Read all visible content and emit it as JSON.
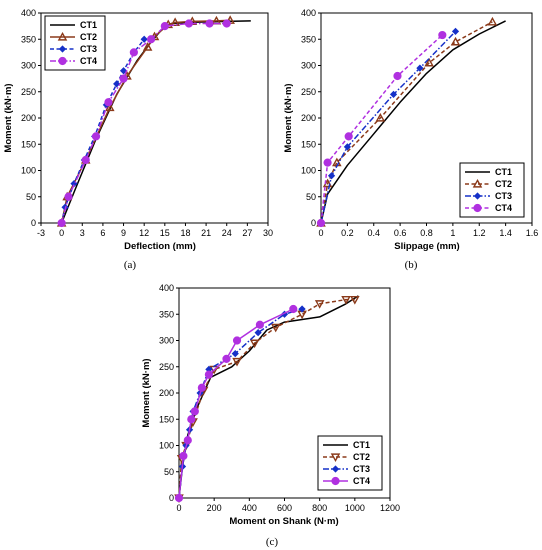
{
  "colors": {
    "CT1": "#000000",
    "CT2": "#8B3A1A",
    "CT3": "#1530C8",
    "CT4": "#B030E0"
  },
  "chart_data": [
    {
      "type": "line",
      "panel": "a",
      "caption": "(a)",
      "xlabel": "Deflection (mm)",
      "ylabel": "Moment (kN·m)",
      "xlim": [
        -3,
        30
      ],
      "ylim": [
        0,
        400
      ],
      "xticks": [
        "-3",
        "0",
        "3",
        "6",
        "9",
        "12",
        "15",
        "18",
        "21",
        "24",
        "27",
        "30"
      ],
      "yticks": [
        "0",
        "50",
        "100",
        "150",
        "200",
        "250",
        "300",
        "350",
        "400"
      ],
      "legend_position": "top-left",
      "series": [
        {
          "name": "CT1",
          "marker": "none",
          "dash": "solid",
          "x": [
            0,
            2,
            5,
            8,
            11,
            13,
            15,
            16,
            18,
            21,
            24,
            27.5
          ],
          "y": [
            0,
            65,
            160,
            245,
            310,
            345,
            375,
            380,
            382,
            383,
            384,
            385
          ]
        },
        {
          "name": "CT2",
          "marker": "triangle-up",
          "dash": "solid",
          "x": [
            0,
            0.8,
            3.5,
            7,
            9.5,
            12.5,
            13.5,
            15.5,
            16.5,
            19,
            22.5,
            24.5
          ],
          "y": [
            0,
            50,
            120,
            220,
            280,
            335,
            355,
            378,
            382,
            384,
            385,
            386
          ]
        },
        {
          "name": "CT3",
          "marker": "diamond",
          "dash": "dashed",
          "x": [
            0,
            0.5,
            1.8,
            3.3,
            4.8,
            6.5,
            8,
            9,
            10.5,
            12
          ],
          "y": [
            0,
            30,
            75,
            120,
            165,
            225,
            265,
            290,
            325,
            350
          ]
        },
        {
          "name": "CT4",
          "marker": "circle",
          "dash": "dashdot",
          "x": [
            0,
            1,
            3.5,
            5,
            6.8,
            9,
            10.5,
            13,
            15,
            18.5,
            21.5,
            24
          ],
          "y": [
            0,
            50,
            120,
            165,
            230,
            275,
            325,
            350,
            375,
            380,
            380,
            380
          ]
        }
      ]
    },
    {
      "type": "line",
      "panel": "b",
      "caption": "(b)",
      "xlabel": "Slippage (mm)",
      "ylabel": "Moment (kN·m)",
      "xlim": [
        0,
        1.6
      ],
      "ylim": [
        0,
        400
      ],
      "xticks": [
        "0",
        "0.2",
        "0.4",
        "0.6",
        "0.8",
        "1",
        "1.2",
        "1.4",
        "1.6"
      ],
      "yticks": [
        "0",
        "50",
        "100",
        "150",
        "200",
        "250",
        "300",
        "350",
        "400"
      ],
      "legend_position": "bottom-right",
      "series": [
        {
          "name": "CT1",
          "marker": "none",
          "dash": "solid",
          "x": [
            0,
            0.05,
            0.2,
            0.4,
            0.6,
            0.8,
            1.0,
            1.2,
            1.4
          ],
          "y": [
            0,
            55,
            110,
            170,
            230,
            285,
            330,
            360,
            385
          ]
        },
        {
          "name": "CT2",
          "marker": "triangle-up",
          "dash": "dashed",
          "x": [
            0,
            0.05,
            0.12,
            0.45,
            0.82,
            1.02,
            1.3
          ],
          "y": [
            0,
            75,
            115,
            200,
            305,
            345,
            383
          ]
        },
        {
          "name": "CT3",
          "marker": "diamond",
          "dash": "dashdot",
          "x": [
            0,
            0.08,
            0.2,
            0.55,
            0.75,
            1.02
          ],
          "y": [
            0,
            90,
            145,
            245,
            295,
            365
          ]
        },
        {
          "name": "CT4",
          "marker": "circle",
          "dash": "dashed",
          "x": [
            0,
            0.05,
            0.21,
            0.58,
            0.92
          ],
          "y": [
            0,
            115,
            165,
            280,
            358
          ]
        }
      ]
    },
    {
      "type": "line",
      "panel": "c",
      "caption": "(c)",
      "xlabel": "Moment on Shank (N·m)",
      "ylabel": "Moment (kN·m)",
      "xlim": [
        0,
        1200
      ],
      "ylim": [
        0,
        400
      ],
      "xticks": [
        "0",
        "200",
        "400",
        "600",
        "800",
        "1000",
        "1200"
      ],
      "yticks": [
        "0",
        "50",
        "100",
        "150",
        "200",
        "250",
        "300",
        "350",
        "400"
      ],
      "legend_position": "bottom-right",
      "series": [
        {
          "name": "CT1",
          "marker": "none",
          "dash": "solid",
          "x": [
            0,
            20,
            50,
            100,
            140,
            180,
            300,
            400,
            500,
            600,
            800,
            950,
            1020
          ],
          "y": [
            0,
            60,
            120,
            170,
            200,
            230,
            250,
            280,
            320,
            335,
            345,
            370,
            385
          ]
        },
        {
          "name": "CT2",
          "marker": "triangle-down",
          "dash": "dashed",
          "x": [
            0,
            15,
            40,
            80,
            140,
            200,
            330,
            430,
            550,
            700,
            800,
            950,
            1000
          ],
          "y": [
            0,
            75,
            100,
            145,
            205,
            245,
            260,
            295,
            325,
            350,
            370,
            378,
            378
          ]
        },
        {
          "name": "CT3",
          "marker": "diamond",
          "dash": "dashdot",
          "x": [
            0,
            20,
            40,
            60,
            80,
            120,
            170,
            320,
            450,
            600,
            700
          ],
          "y": [
            0,
            60,
            100,
            130,
            165,
            200,
            245,
            275,
            315,
            350,
            360
          ]
        },
        {
          "name": "CT4",
          "marker": "circle",
          "dash": "solid",
          "x": [
            0,
            25,
            50,
            70,
            90,
            130,
            170,
            270,
            330,
            460,
            650
          ],
          "y": [
            0,
            80,
            110,
            150,
            165,
            210,
            235,
            265,
            300,
            330,
            360
          ]
        }
      ]
    }
  ]
}
